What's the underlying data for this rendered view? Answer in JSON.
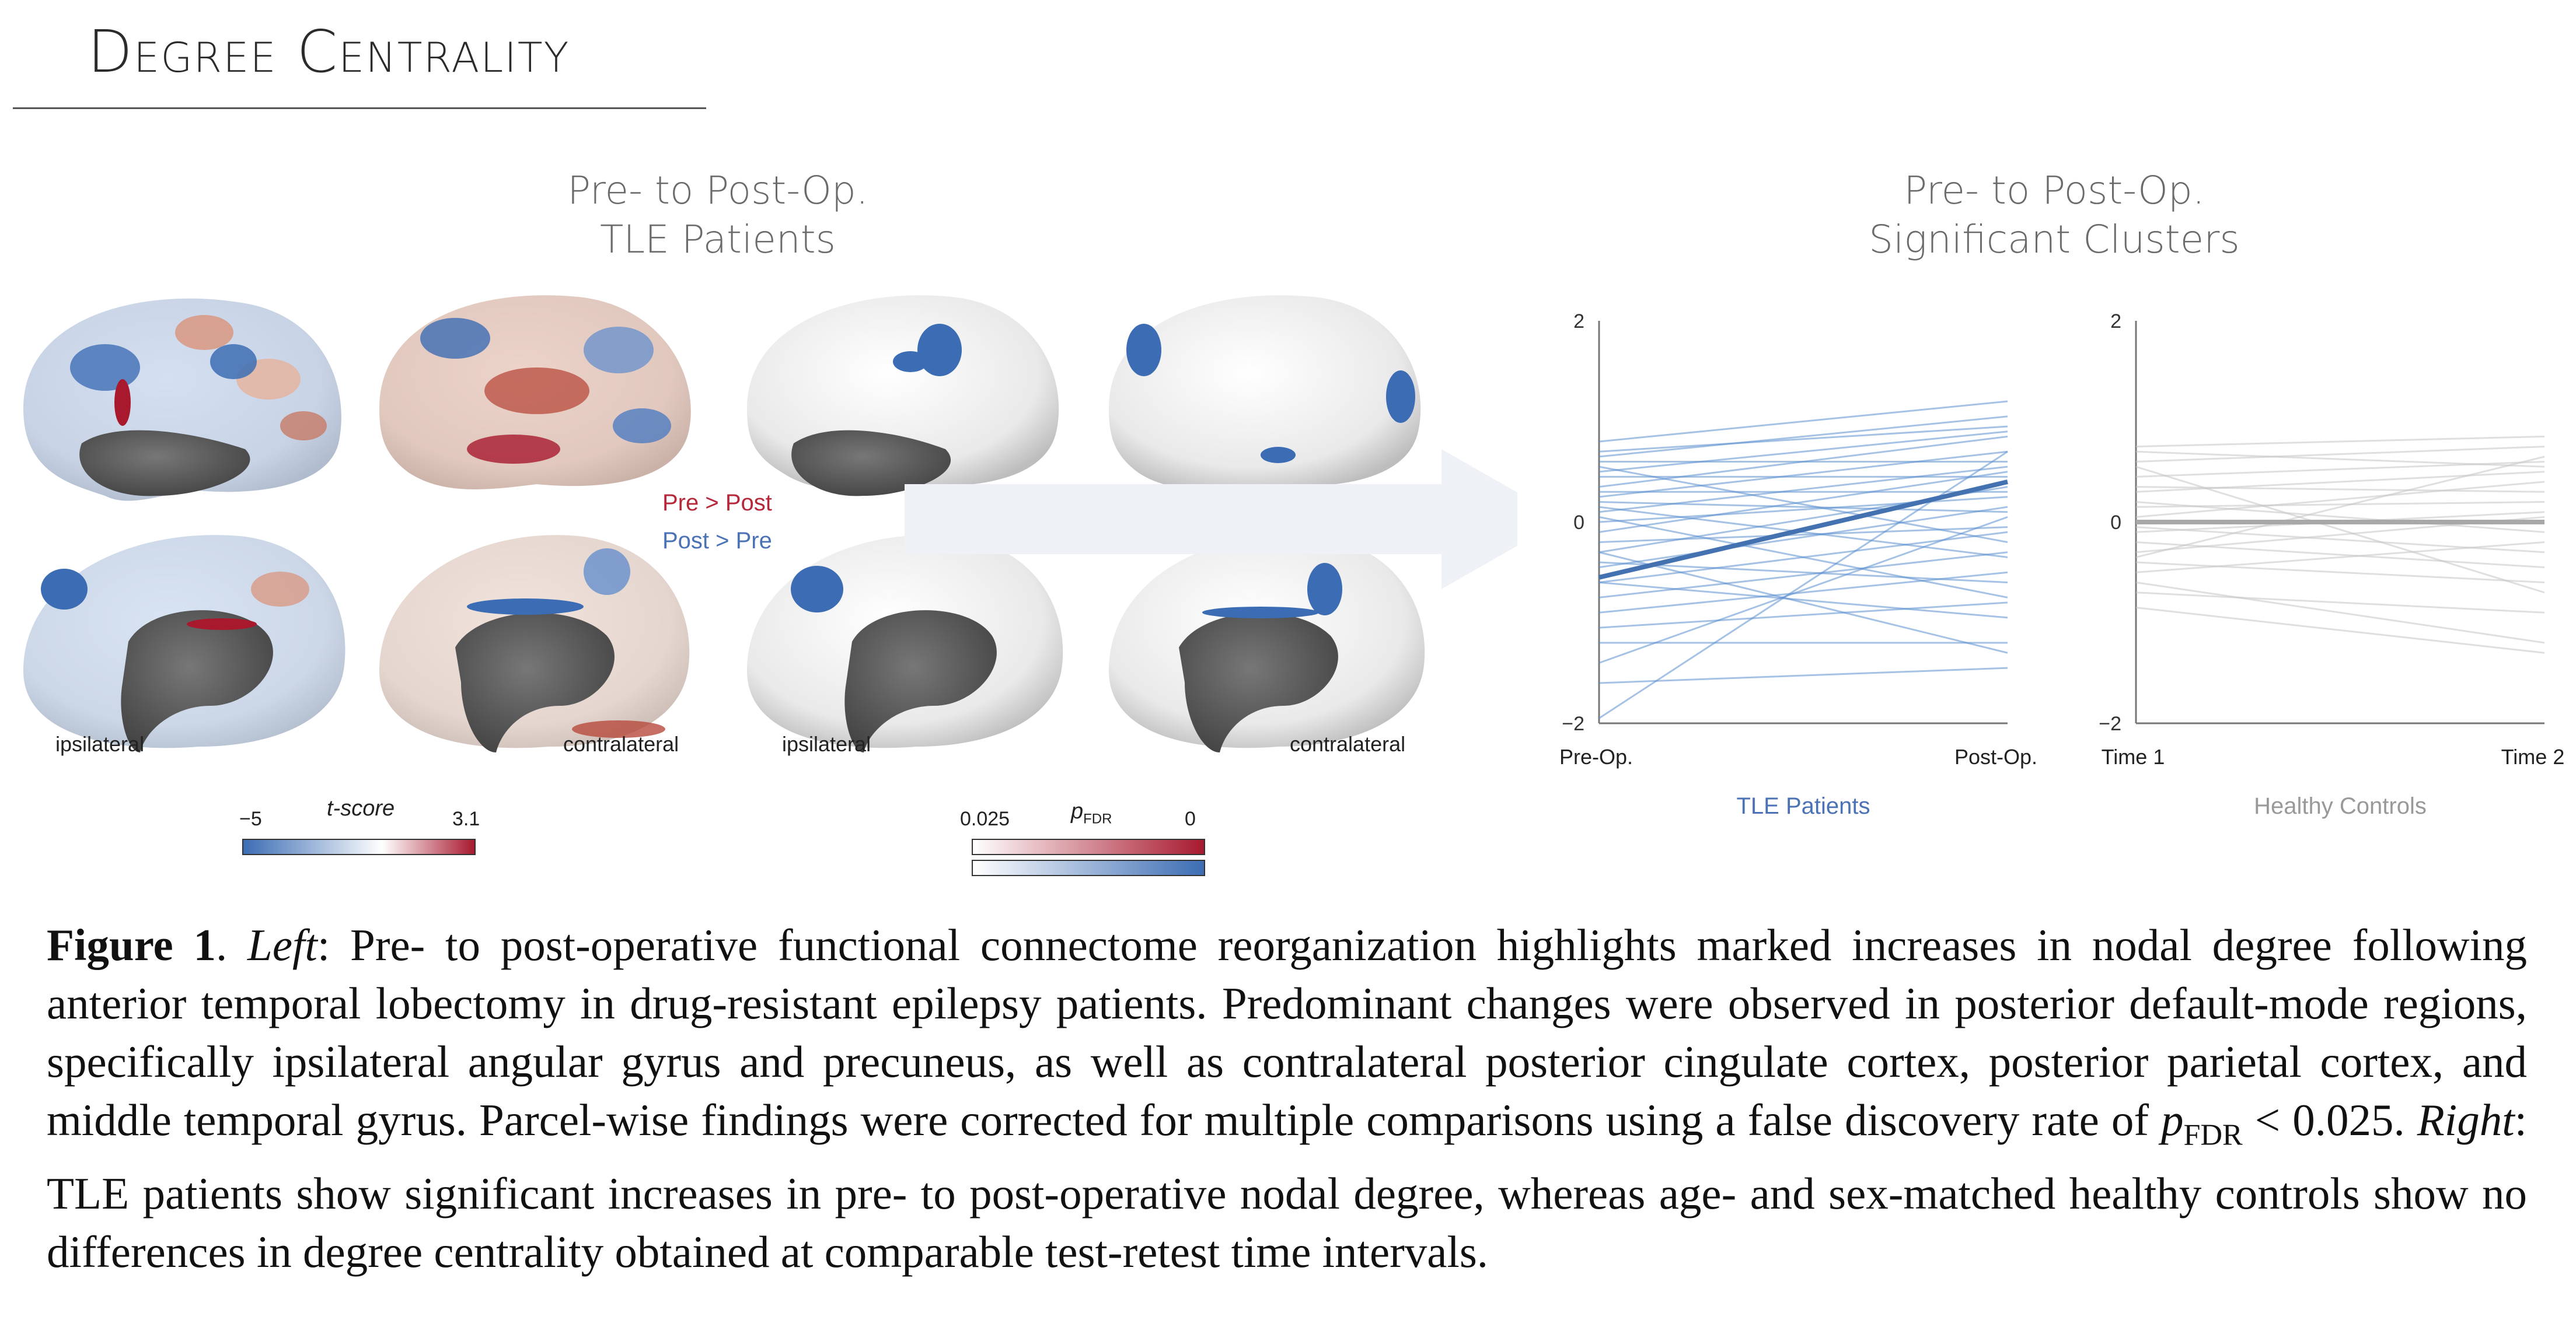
{
  "header": {
    "title": "Degree Centrality"
  },
  "left_panel": {
    "title_line1": "Pre- to Post-Op.",
    "title_line2": "TLE Patients",
    "hemi_labels": {
      "ipsi_1": "ipsilateral",
      "contra_1": "contralateral",
      "ipsi_2": "ipsilateral",
      "contra_2": "contralateral"
    },
    "legend": {
      "pre_gt_post": "Pre > Post",
      "post_gt_pre": "Post > Pre"
    },
    "tscore_bar": {
      "title": "t-score",
      "min": "−5",
      "max": "3.1"
    },
    "pfdr_bar": {
      "title_p": "p",
      "title_sub": "FDR",
      "min": "0.025",
      "max": "0"
    },
    "colors": {
      "red": "#a8192e",
      "blue": "#3c6db4",
      "gray": "#5a5a5a"
    }
  },
  "right_panel": {
    "title_line1": "Pre- to Post-Op.",
    "title_line2": "Significant Clusters"
  },
  "chart_data": [
    {
      "type": "line",
      "title": "TLE Patients",
      "x": [
        "Pre-Op.",
        "Post-Op."
      ],
      "ylim": [
        -2,
        2
      ],
      "yticks": [
        "2",
        "0",
        "−2"
      ],
      "color": "#5b8fd0",
      "mean": {
        "values": [
          -0.55,
          0.4
        ]
      },
      "series": [
        [
          0.8,
          1.2
        ],
        [
          0.65,
          1.05
        ],
        [
          0.7,
          0.95
        ],
        [
          0.5,
          0.9
        ],
        [
          0.35,
          0.85
        ],
        [
          0.25,
          0.7
        ],
        [
          0.6,
          0.6
        ],
        [
          0.1,
          0.55
        ],
        [
          0.45,
          0.45
        ],
        [
          -0.1,
          0.5
        ],
        [
          0.3,
          0.3
        ],
        [
          0.0,
          0.25
        ],
        [
          -0.3,
          0.35
        ],
        [
          0.2,
          0.1
        ],
        [
          -0.45,
          0.15
        ],
        [
          -0.2,
          -0.05
        ],
        [
          0.55,
          -0.2
        ],
        [
          -0.6,
          -0.1
        ],
        [
          0.15,
          -0.35
        ],
        [
          -0.75,
          -0.3
        ],
        [
          -0.9,
          -0.5
        ],
        [
          -0.4,
          -0.6
        ],
        [
          0.05,
          -0.75
        ],
        [
          -1.05,
          -0.8
        ],
        [
          -0.6,
          -0.95
        ],
        [
          -1.2,
          -1.2
        ],
        [
          -0.3,
          -1.3
        ],
        [
          -1.6,
          -1.45
        ],
        [
          -1.95,
          0.7
        ],
        [
          -1.4,
          0.05
        ]
      ]
    },
    {
      "type": "line",
      "title": "Healthy Controls",
      "x": [
        "Time 1",
        "Time 2"
      ],
      "ylim": [
        -2,
        2
      ],
      "yticks": [
        "2",
        "0",
        "−2"
      ],
      "color": "#c4c4c4",
      "mean": {
        "values": [
          0.0,
          0.0
        ]
      },
      "series": [
        [
          0.75,
          0.85
        ],
        [
          0.7,
          0.55
        ],
        [
          0.6,
          0.75
        ],
        [
          0.45,
          0.6
        ],
        [
          0.35,
          0.3
        ],
        [
          0.3,
          0.5
        ],
        [
          0.2,
          -0.1
        ],
        [
          0.15,
          0.2
        ],
        [
          0.05,
          0.4
        ],
        [
          -0.05,
          -0.3
        ],
        [
          -0.1,
          0.1
        ],
        [
          -0.2,
          -0.45
        ],
        [
          -0.3,
          0.05
        ],
        [
          -0.4,
          -0.6
        ],
        [
          -0.5,
          -0.2
        ],
        [
          -0.6,
          -1.2
        ],
        [
          -0.7,
          -0.9
        ],
        [
          -0.85,
          -1.3
        ],
        [
          0.55,
          -0.7
        ],
        [
          -0.35,
          0.65
        ]
      ]
    }
  ],
  "caption": {
    "fig_label": "Figure 1",
    "sep1": ". ",
    "left_label": "Left",
    "text1": ": Pre- to post-operative functional connectome reorganization highlights marked increases in nodal degree following anterior temporal lobectomy in drug-resistant epilepsy patients. Predominant changes were observed in posterior default-mode regions, specifically ipsilateral angular gyrus and precuneus, as well as contralateral posterior cingulate cortex, posterior parietal cortex, and middle temporal gyrus. Parcel-wise findings were corrected for multiple comparisons using a false discovery rate of ",
    "p": "p",
    "fdr": "FDR",
    "text2": " < 0.025. ",
    "right_label": "Right",
    "text3": ": TLE patients show significant increases in pre- to post-operative nodal degree, whereas age- and sex-matched healthy controls show no differences in degree centrality obtained at comparable test-retest time intervals."
  }
}
